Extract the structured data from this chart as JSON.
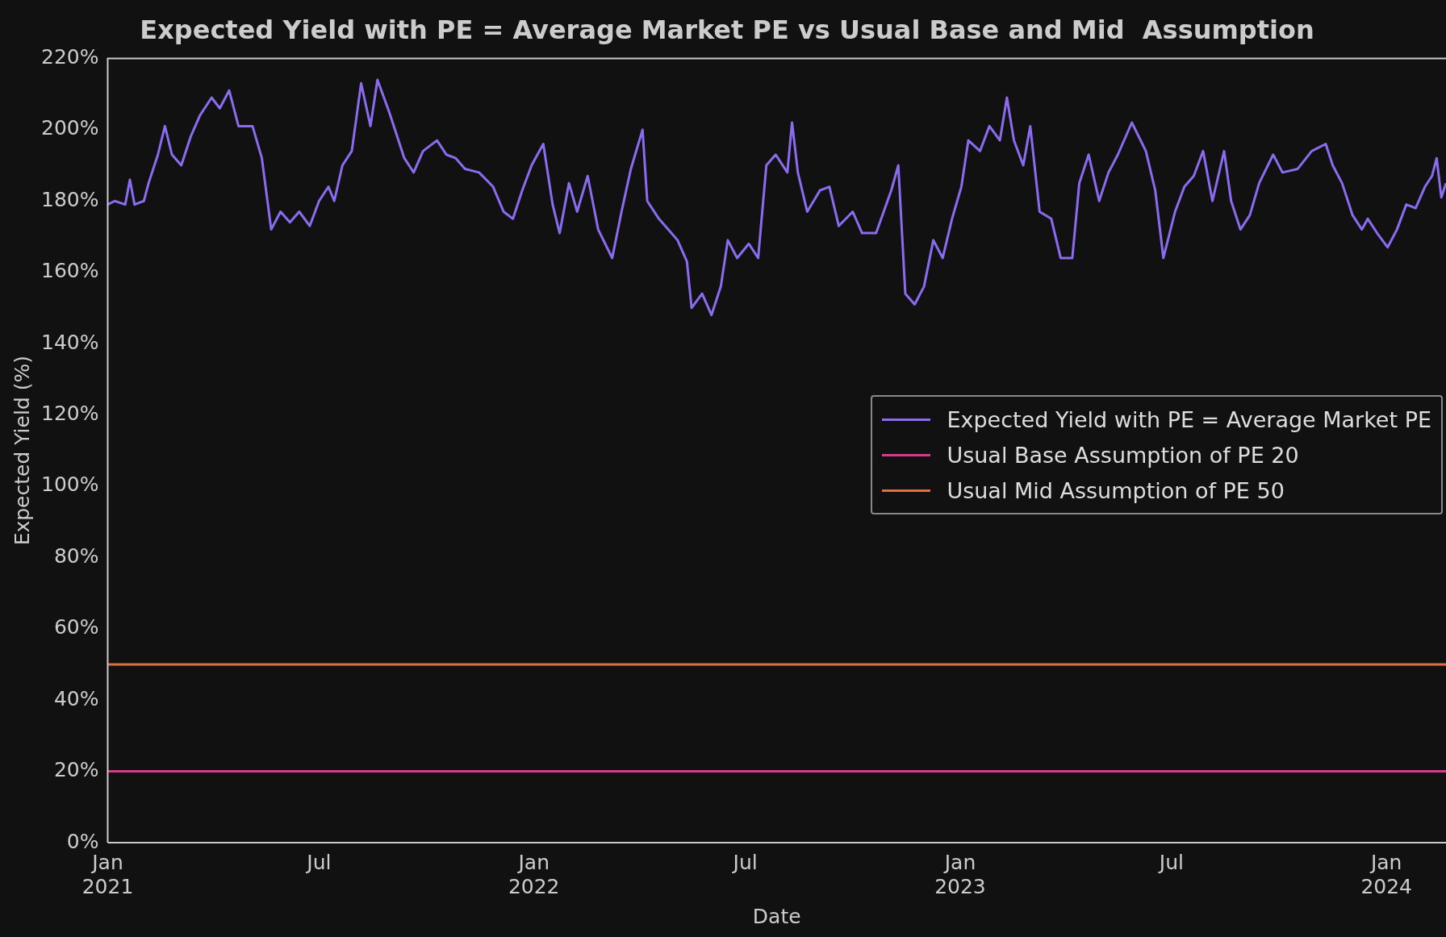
{
  "chart_data": {
    "type": "line",
    "title": "Expected Yield with PE = Average Market PE vs Usual Base and Mid  Assumption",
    "xlabel": "Date",
    "ylabel": "Expected Yield (%)",
    "xlim": [
      "2021-01-01",
      "2024-02-21"
    ],
    "xticks": [
      {
        "value": "2021-01-01",
        "label": "Jan\n2021"
      },
      {
        "value": "2021-07-01",
        "label": "Jul"
      },
      {
        "value": "2022-01-01",
        "label": "Jan\n2022"
      },
      {
        "value": "2022-07-01",
        "label": "Jul"
      },
      {
        "value": "2023-01-01",
        "label": "Jan\n2023"
      },
      {
        "value": "2023-07-01",
        "label": "Jul"
      },
      {
        "value": "2024-01-01",
        "label": "Jan\n2024"
      }
    ],
    "ylim": [
      0,
      220
    ],
    "yticks": [
      {
        "value": 0,
        "label": "0%"
      },
      {
        "value": 20,
        "label": "20%"
      },
      {
        "value": 40,
        "label": "40%"
      },
      {
        "value": 60,
        "label": "60%"
      },
      {
        "value": 80,
        "label": "80%"
      },
      {
        "value": 100,
        "label": "100%"
      },
      {
        "value": 120,
        "label": "120%"
      },
      {
        "value": 140,
        "label": "140%"
      },
      {
        "value": 160,
        "label": "160%"
      },
      {
        "value": 180,
        "label": "180%"
      },
      {
        "value": 200,
        "label": "200%"
      },
      {
        "value": 220,
        "label": "220%"
      }
    ],
    "grid": false,
    "legend": "right",
    "marker": "none",
    "line_style": "solid",
    "series": [
      {
        "name": "Expected Yield with PE = Average Market PE",
        "color": "#8b6cf0",
        "x": [
          "2021-01-01",
          "2021-01-07",
          "2021-01-16",
          "2021-01-20",
          "2021-01-24",
          "2021-02-01",
          "2021-02-05",
          "2021-02-13",
          "2021-02-19",
          "2021-02-25",
          "2021-03-05",
          "2021-03-13",
          "2021-03-21",
          "2021-03-31",
          "2021-04-07",
          "2021-04-15",
          "2021-04-23",
          "2021-05-05",
          "2021-05-13",
          "2021-05-21",
          "2021-05-29",
          "2021-06-06",
          "2021-06-14",
          "2021-06-23",
          "2021-07-01",
          "2021-07-09",
          "2021-07-14",
          "2021-07-21",
          "2021-07-29",
          "2021-08-06",
          "2021-08-14",
          "2021-08-20",
          "2021-08-30",
          "2021-09-12",
          "2021-09-20",
          "2021-09-28",
          "2021-10-10",
          "2021-10-18",
          "2021-10-26",
          "2021-11-03",
          "2021-11-15",
          "2021-11-27",
          "2021-12-06",
          "2021-12-14",
          "2021-12-22",
          "2021-12-30",
          "2022-01-09",
          "2022-01-17",
          "2022-01-23",
          "2022-01-31",
          "2022-02-07",
          "2022-02-16",
          "2022-02-25",
          "2022-03-09",
          "2022-03-17",
          "2022-03-25",
          "2022-04-04",
          "2022-04-08",
          "2022-04-18",
          "2022-04-26",
          "2022-05-04",
          "2022-05-12",
          "2022-05-16",
          "2022-05-25",
          "2022-06-02",
          "2022-06-10",
          "2022-06-16",
          "2022-06-24",
          "2022-07-04",
          "2022-07-12",
          "2022-07-19",
          "2022-07-27",
          "2022-08-06",
          "2022-08-10",
          "2022-08-15",
          "2022-08-23",
          "2022-09-03",
          "2022-09-11",
          "2022-09-19",
          "2022-10-01",
          "2022-10-09",
          "2022-10-21",
          "2022-11-03",
          "2022-11-09",
          "2022-11-15",
          "2022-11-23",
          "2022-12-01",
          "2022-12-09",
          "2022-12-17",
          "2022-12-25",
          "2023-01-02",
          "2023-01-08",
          "2023-01-18",
          "2023-01-26",
          "2023-02-04",
          "2023-02-10",
          "2023-02-16",
          "2023-02-24",
          "2023-03-02",
          "2023-03-10",
          "2023-03-20",
          "2023-03-28",
          "2023-04-07",
          "2023-04-13",
          "2023-04-21",
          "2023-04-30",
          "2023-05-08",
          "2023-05-16",
          "2023-05-28",
          "2023-06-09",
          "2023-06-17",
          "2023-06-24",
          "2023-07-04",
          "2023-07-12",
          "2023-07-20",
          "2023-07-28",
          "2023-08-05",
          "2023-08-15",
          "2023-08-21",
          "2023-08-29",
          "2023-09-06",
          "2023-09-14",
          "2023-09-26",
          "2023-10-04",
          "2023-10-17",
          "2023-10-29",
          "2023-11-10",
          "2023-11-16",
          "2023-11-24",
          "2023-12-03",
          "2023-12-11",
          "2023-12-16",
          "2023-12-24",
          "2024-01-02",
          "2024-01-10",
          "2024-01-18",
          "2024-01-26",
          "2024-02-03",
          "2024-02-09",
          "2024-02-13",
          "2024-02-17",
          "2024-02-21"
        ],
        "values": [
          179,
          180,
          179,
          186,
          179,
          180,
          185,
          193,
          201,
          193,
          190,
          198,
          204,
          209,
          206,
          211,
          201,
          201,
          192,
          172,
          177,
          174,
          177,
          173,
          180,
          184,
          180,
          190,
          194,
          213,
          201,
          214,
          205,
          192,
          188,
          194,
          197,
          193,
          192,
          189,
          188,
          184,
          177,
          175,
          183,
          190,
          196,
          179,
          171,
          185,
          177,
          187,
          172,
          164,
          177,
          189,
          200,
          180,
          175,
          172,
          169,
          163,
          150,
          154,
          148,
          156,
          169,
          164,
          168,
          164,
          190,
          193,
          188,
          202,
          188,
          177,
          183,
          184,
          173,
          177,
          171,
          171,
          183,
          190,
          154,
          151,
          156,
          169,
          164,
          175,
          184,
          197,
          194,
          201,
          197,
          209,
          197,
          190,
          201,
          177,
          175,
          164,
          164,
          185,
          193,
          180,
          188,
          193,
          202,
          194,
          183,
          164,
          177,
          184,
          187,
          194,
          180,
          194,
          180,
          172,
          176,
          185,
          193,
          188,
          189,
          194,
          196,
          190,
          185,
          176,
          172,
          175,
          171,
          167,
          172,
          179,
          178,
          184,
          187,
          192,
          181,
          185
        ]
      },
      {
        "name": "Usual Base Assumption of PE 20",
        "color": "#d63c8c",
        "x": [
          "2021-01-01",
          "2024-02-21"
        ],
        "values": [
          20,
          20
        ]
      },
      {
        "name": "Usual Mid Assumption of PE 50",
        "color": "#e0703c",
        "x": [
          "2021-01-01",
          "2024-02-21"
        ],
        "values": [
          50,
          50
        ]
      }
    ]
  }
}
